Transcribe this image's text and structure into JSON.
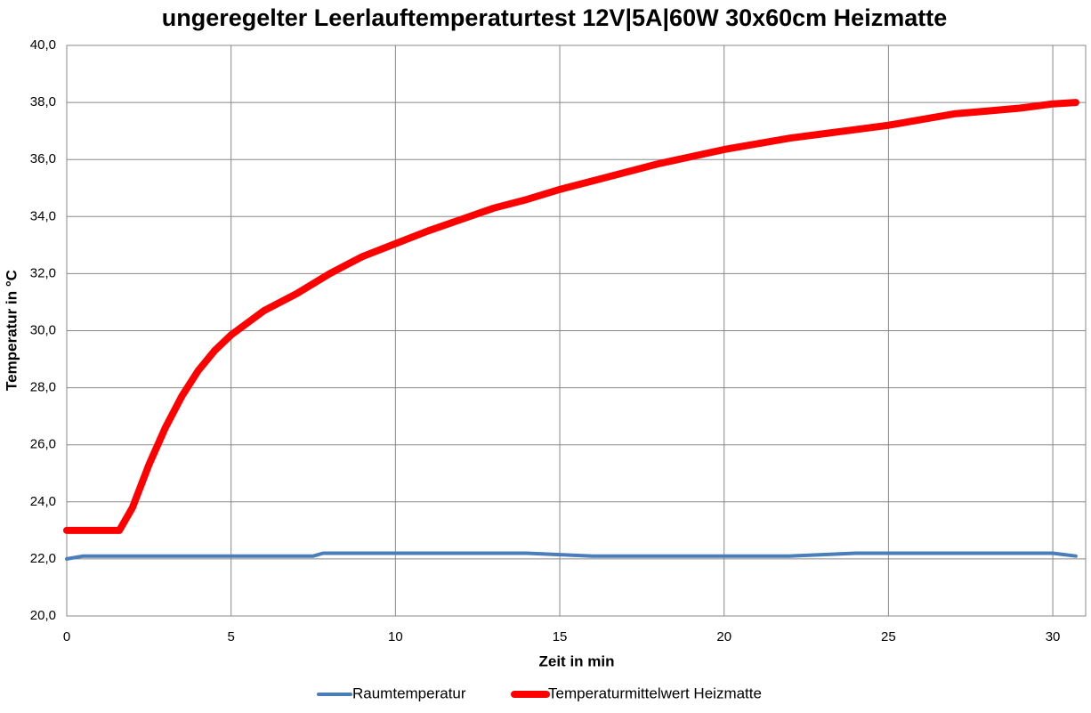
{
  "chart_data": {
    "type": "line",
    "title": "ungeregelter Leerlauftemperaturtest  12V|5A|60W 30x60cm Heizmatte",
    "x_label": "Zeit in min",
    "y_label": "Temperatur in °C",
    "xlim": [
      0,
      31
    ],
    "xticks": [
      0,
      5,
      10,
      15,
      20,
      25,
      30
    ],
    "ylim": [
      20,
      40
    ],
    "yticks": [
      {
        "value": 20,
        "label": "20,0"
      },
      {
        "value": 22,
        "label": "22,0"
      },
      {
        "value": 24,
        "label": "24,0"
      },
      {
        "value": 26,
        "label": "26,0"
      },
      {
        "value": 28,
        "label": "28,0"
      },
      {
        "value": 30,
        "label": "30,0"
      },
      {
        "value": 32,
        "label": "32,0"
      },
      {
        "value": 34,
        "label": "34,0"
      },
      {
        "value": 36,
        "label": "36,0"
      },
      {
        "value": 38,
        "label": "38,0"
      },
      {
        "value": 40,
        "label": "40,0"
      }
    ],
    "grid": true,
    "legend": "bottom",
    "series": [
      {
        "name": "Raumtemperatur",
        "color": "#4a7ebb",
        "width": 4,
        "x": [
          0,
          0.5,
          7.5,
          7.8,
          14,
          15,
          16,
          20,
          22,
          24,
          28,
          30,
          30.7
        ],
        "values": [
          22.0,
          22.1,
          22.1,
          22.2,
          22.2,
          22.15,
          22.1,
          22.1,
          22.1,
          22.2,
          22.2,
          22.2,
          22.1
        ]
      },
      {
        "name": "Temperaturmittelwert Heizmatte",
        "color": "#ff0000",
        "width": 8,
        "x": [
          0,
          0.5,
          1,
          1.6,
          2,
          2.5,
          3,
          3.5,
          4,
          4.5,
          5,
          6,
          7,
          8,
          9,
          10,
          11,
          12,
          13,
          14,
          15,
          16,
          17,
          18,
          19,
          20,
          21,
          22,
          23,
          24,
          25,
          26,
          27,
          28,
          29,
          30,
          30.7
        ],
        "values": [
          23.0,
          23.0,
          23.0,
          23.0,
          23.8,
          25.3,
          26.6,
          27.7,
          28.6,
          29.3,
          29.85,
          30.7,
          31.3,
          32.0,
          32.6,
          33.05,
          33.5,
          33.9,
          34.3,
          34.6,
          34.95,
          35.25,
          35.55,
          35.85,
          36.1,
          36.35,
          36.55,
          36.75,
          36.9,
          37.05,
          37.2,
          37.4,
          37.6,
          37.7,
          37.8,
          37.95,
          38.0
        ]
      }
    ]
  }
}
